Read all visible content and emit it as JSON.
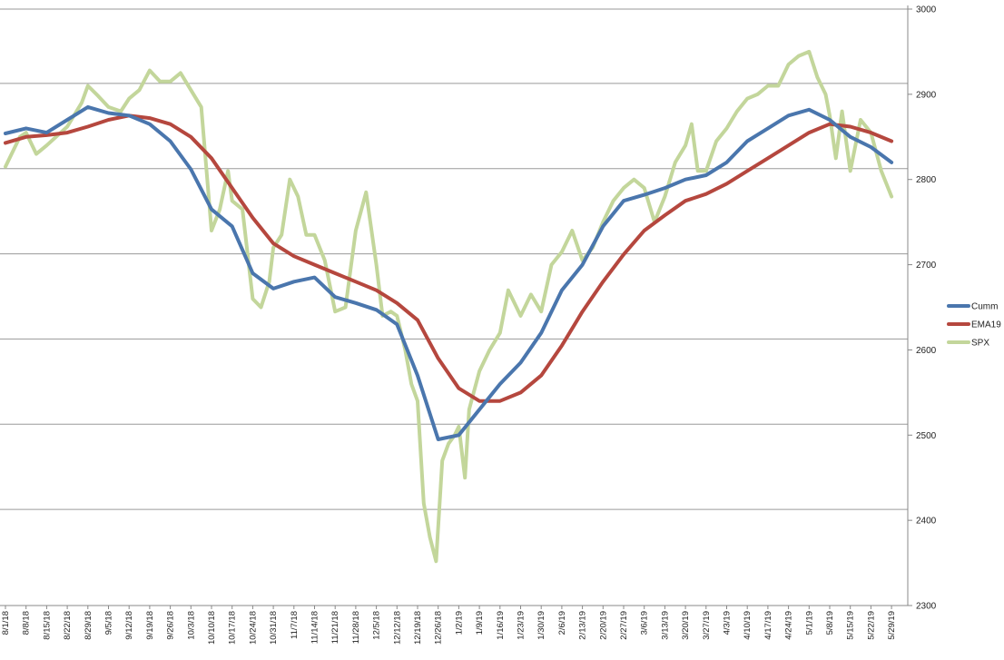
{
  "chart_data": {
    "type": "line",
    "title": "",
    "xlabel": "",
    "ylabel": "",
    "ylim": [
      2300,
      3000
    ],
    "y_ticks": [
      2300,
      2400,
      2500,
      2600,
      2700,
      2800,
      2900,
      3000
    ],
    "y_axis_side": "right",
    "grid": "horizontal gridlines at y-axis majors, offset",
    "legend_position": "right-middle",
    "x_tick_labels": [
      "8/1/18",
      "8/8/18",
      "8/15/18",
      "8/22/18",
      "8/29/18",
      "9/5/18",
      "9/12/18",
      "9/19/18",
      "9/26/18",
      "10/3/18",
      "10/10/18",
      "10/17/18",
      "10/24/18",
      "10/31/18",
      "11/7/18",
      "11/14/18",
      "11/21/18",
      "11/28/18",
      "12/5/18",
      "12/12/18",
      "12/19/18",
      "12/26/18",
      "1/2/19",
      "1/9/19",
      "1/16/19",
      "1/23/19",
      "1/30/19",
      "2/6/19",
      "2/13/19",
      "2/20/19",
      "2/27/19",
      "3/6/19",
      "3/13/19",
      "3/20/19",
      "3/27/19",
      "4/3/19",
      "4/10/19",
      "4/17/19",
      "4/24/19",
      "5/1/19",
      "5/8/19",
      "5/15/19",
      "5/22/19",
      "5/29/19"
    ],
    "series": [
      {
        "name": "Cumm",
        "color": "#4a76ad",
        "points": [
          [
            0,
            2854
          ],
          [
            1,
            2860
          ],
          [
            2,
            2855
          ],
          [
            3,
            2870
          ],
          [
            4,
            2885
          ],
          [
            5,
            2878
          ],
          [
            6,
            2875
          ],
          [
            7,
            2865
          ],
          [
            8,
            2845
          ],
          [
            9,
            2812
          ],
          [
            10,
            2765
          ],
          [
            11,
            2745
          ],
          [
            12,
            2690
          ],
          [
            13,
            2672
          ],
          [
            14,
            2680
          ],
          [
            15,
            2685
          ],
          [
            16,
            2662
          ],
          [
            17,
            2655
          ],
          [
            18,
            2647
          ],
          [
            19,
            2630
          ],
          [
            20,
            2570
          ],
          [
            21,
            2495
          ],
          [
            22,
            2500
          ],
          [
            23,
            2530
          ],
          [
            24,
            2560
          ],
          [
            25,
            2585
          ],
          [
            26,
            2620
          ],
          [
            27,
            2670
          ],
          [
            28,
            2700
          ],
          [
            29,
            2745
          ],
          [
            30,
            2775
          ],
          [
            31,
            2782
          ],
          [
            32,
            2790
          ],
          [
            33,
            2800
          ],
          [
            34,
            2805
          ],
          [
            35,
            2820
          ],
          [
            36,
            2845
          ],
          [
            37,
            2860
          ],
          [
            38,
            2875
          ],
          [
            39,
            2882
          ],
          [
            40,
            2870
          ],
          [
            41,
            2850
          ],
          [
            42,
            2838
          ],
          [
            43,
            2820
          ]
        ]
      },
      {
        "name": "EMA19",
        "color": "#b5473e",
        "points": [
          [
            0,
            2843
          ],
          [
            1,
            2850
          ],
          [
            2,
            2852
          ],
          [
            3,
            2855
          ],
          [
            4,
            2862
          ],
          [
            5,
            2870
          ],
          [
            6,
            2875
          ],
          [
            7,
            2872
          ],
          [
            8,
            2865
          ],
          [
            9,
            2850
          ],
          [
            10,
            2825
          ],
          [
            11,
            2790
          ],
          [
            12,
            2755
          ],
          [
            13,
            2725
          ],
          [
            14,
            2710
          ],
          [
            15,
            2700
          ],
          [
            16,
            2690
          ],
          [
            17,
            2680
          ],
          [
            18,
            2670
          ],
          [
            19,
            2655
          ],
          [
            20,
            2635
          ],
          [
            21,
            2590
          ],
          [
            22,
            2555
          ],
          [
            23,
            2540
          ],
          [
            24,
            2540
          ],
          [
            25,
            2550
          ],
          [
            26,
            2570
          ],
          [
            27,
            2605
          ],
          [
            28,
            2645
          ],
          [
            29,
            2680
          ],
          [
            30,
            2712
          ],
          [
            31,
            2740
          ],
          [
            32,
            2758
          ],
          [
            33,
            2775
          ],
          [
            34,
            2783
          ],
          [
            35,
            2795
          ],
          [
            36,
            2810
          ],
          [
            37,
            2825
          ],
          [
            38,
            2840
          ],
          [
            39,
            2855
          ],
          [
            40,
            2865
          ],
          [
            41,
            2862
          ],
          [
            42,
            2855
          ],
          [
            43,
            2845
          ]
        ]
      },
      {
        "name": "SPX",
        "color": "#c3d69b",
        "points": [
          [
            0,
            2815
          ],
          [
            0.7,
            2850
          ],
          [
            1,
            2855
          ],
          [
            1.5,
            2830
          ],
          [
            2,
            2840
          ],
          [
            3,
            2862
          ],
          [
            3.7,
            2890
          ],
          [
            4,
            2910
          ],
          [
            4.5,
            2898
          ],
          [
            5,
            2885
          ],
          [
            5.6,
            2880
          ],
          [
            6,
            2895
          ],
          [
            6.5,
            2905
          ],
          [
            7,
            2928
          ],
          [
            7.5,
            2915
          ],
          [
            8,
            2915
          ],
          [
            8.5,
            2925
          ],
          [
            9,
            2905
          ],
          [
            9.5,
            2885
          ],
          [
            10,
            2740
          ],
          [
            10.4,
            2765
          ],
          [
            10.8,
            2810
          ],
          [
            11,
            2775
          ],
          [
            11.5,
            2765
          ],
          [
            12,
            2660
          ],
          [
            12.4,
            2650
          ],
          [
            12.8,
            2680
          ],
          [
            13,
            2720
          ],
          [
            13.4,
            2735
          ],
          [
            13.8,
            2800
          ],
          [
            14.2,
            2780
          ],
          [
            14.6,
            2735
          ],
          [
            15,
            2735
          ],
          [
            15.5,
            2705
          ],
          [
            16,
            2645
          ],
          [
            16.5,
            2650
          ],
          [
            17,
            2740
          ],
          [
            17.5,
            2785
          ],
          [
            18,
            2700
          ],
          [
            18.3,
            2640
          ],
          [
            18.7,
            2645
          ],
          [
            19,
            2640
          ],
          [
            19.4,
            2600
          ],
          [
            19.7,
            2560
          ],
          [
            20,
            2540
          ],
          [
            20.3,
            2420
          ],
          [
            20.6,
            2380
          ],
          [
            20.9,
            2352
          ],
          [
            21.2,
            2470
          ],
          [
            21.5,
            2490
          ],
          [
            21.8,
            2500
          ],
          [
            22,
            2510
          ],
          [
            22.3,
            2450
          ],
          [
            22.5,
            2530
          ],
          [
            23,
            2575
          ],
          [
            23.5,
            2600
          ],
          [
            24,
            2620
          ],
          [
            24.4,
            2670
          ],
          [
            24.8,
            2650
          ],
          [
            25,
            2640
          ],
          [
            25.5,
            2665
          ],
          [
            26,
            2645
          ],
          [
            26.5,
            2700
          ],
          [
            27,
            2715
          ],
          [
            27.5,
            2740
          ],
          [
            28,
            2705
          ],
          [
            28.5,
            2720
          ],
          [
            29,
            2750
          ],
          [
            29.5,
            2775
          ],
          [
            30,
            2790
          ],
          [
            30.5,
            2800
          ],
          [
            31,
            2790
          ],
          [
            31.5,
            2750
          ],
          [
            32,
            2780
          ],
          [
            32.5,
            2820
          ],
          [
            33,
            2840
          ],
          [
            33.3,
            2865
          ],
          [
            33.6,
            2810
          ],
          [
            34,
            2810
          ],
          [
            34.5,
            2845
          ],
          [
            35,
            2860
          ],
          [
            35.5,
            2880
          ],
          [
            36,
            2895
          ],
          [
            36.5,
            2900
          ],
          [
            37,
            2910
          ],
          [
            37.5,
            2910
          ],
          [
            38,
            2935
          ],
          [
            38.5,
            2945
          ],
          [
            39,
            2950
          ],
          [
            39.4,
            2920
          ],
          [
            39.8,
            2900
          ],
          [
            40,
            2875
          ],
          [
            40.3,
            2825
          ],
          [
            40.6,
            2880
          ],
          [
            41,
            2810
          ],
          [
            41.5,
            2870
          ],
          [
            42,
            2855
          ],
          [
            42.5,
            2810
          ],
          [
            43,
            2780
          ]
        ]
      }
    ]
  }
}
